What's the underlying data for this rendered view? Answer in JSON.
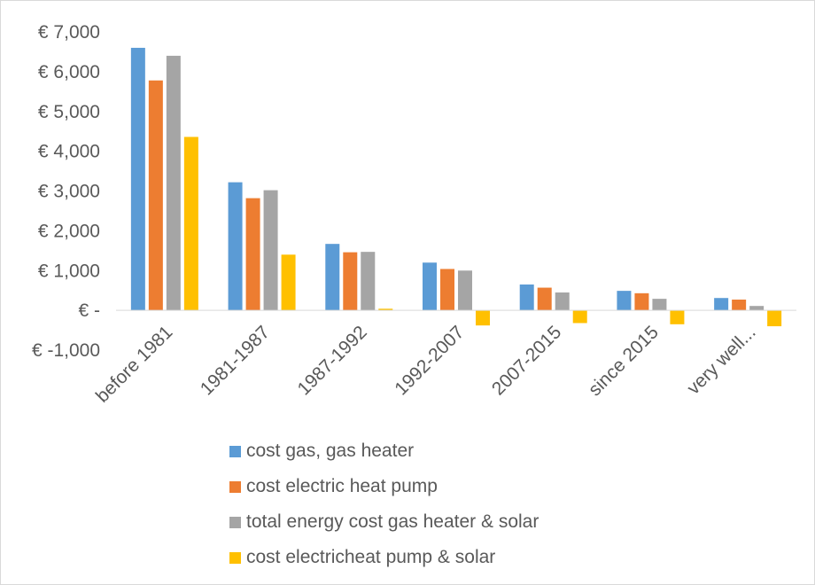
{
  "chart_data": {
    "type": "bar",
    "categories": [
      "before 1981",
      "1981-1987",
      "1987-1992",
      "1992-2007",
      "2007-2015",
      "since 2015",
      "very well..."
    ],
    "series": [
      {
        "name": "cost gas, gas heater",
        "color": "#5b9bd5",
        "values": [
          6600,
          3220,
          1670,
          1200,
          650,
          490,
          310
        ]
      },
      {
        "name": "cost electric heat pump",
        "color": "#ed7d31",
        "values": [
          5780,
          2820,
          1460,
          1040,
          570,
          430,
          270
        ]
      },
      {
        "name": "total energy cost gas heater & solar",
        "color": "#a5a5a5",
        "values": [
          6400,
          3020,
          1470,
          1000,
          450,
          290,
          110
        ]
      },
      {
        "name": "cost electricheat pump & solar",
        "color": "#ffc000",
        "values": [
          4360,
          1400,
          40,
          -380,
          -320,
          -350,
          -400
        ]
      }
    ],
    "y_tick_values": [
      7000,
      6000,
      5000,
      4000,
      3000,
      2000,
      1000,
      0,
      -1000
    ],
    "y_tick_labels": [
      "€ 7,000",
      "€ 6,000",
      "€ 5,000",
      "€ 4,000",
      "€ 3,000",
      "€ 2,000",
      "€ 1,000",
      "€ -",
      "€ -1,000"
    ],
    "ylim": [
      -1000,
      7000
    ],
    "title": "",
    "xlabel": "",
    "ylabel": "",
    "grid": false,
    "legend_position": "bottom"
  }
}
